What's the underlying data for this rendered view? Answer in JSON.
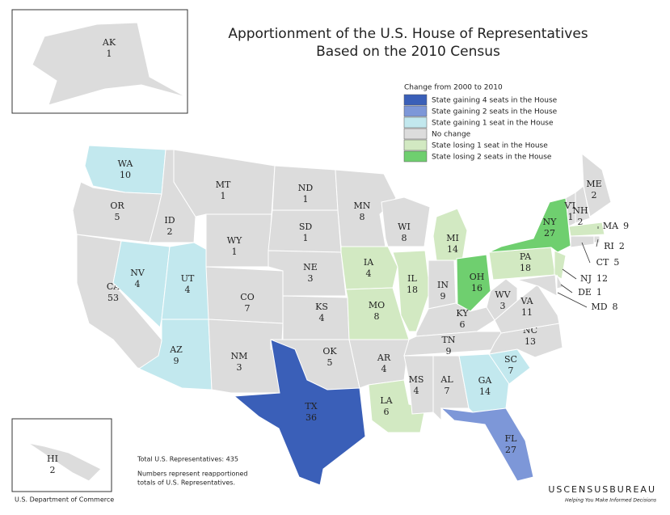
{
  "title": "Apportionment of the U.S. House of Representatives",
  "subtitle": "Based on the 2010 Census",
  "legend": {
    "title": "Change from 2000 to 2010",
    "items": [
      {
        "label": "State gaining 4 seats in the House",
        "color": "#3a5fb8"
      },
      {
        "label": "State gaining 2 seats in the House",
        "color": "#7d97d8"
      },
      {
        "label": "State gaining 1 seat in the House",
        "color": "#c2e8ee"
      },
      {
        "label": "No change",
        "color": "#dcdcdc"
      },
      {
        "label": "State losing 1 seat in the House",
        "color": "#d2e9c2"
      },
      {
        "label": "State losing 2 seats in the House",
        "color": "#6fcf6f"
      }
    ]
  },
  "states": [
    {
      "abbr": "WA",
      "seats": 10,
      "color": "#c2e8ee"
    },
    {
      "abbr": "OR",
      "seats": 5,
      "color": "#dcdcdc"
    },
    {
      "abbr": "CA",
      "seats": 53,
      "color": "#dcdcdc"
    },
    {
      "abbr": "ID",
      "seats": 2,
      "color": "#dcdcdc"
    },
    {
      "abbr": "NV",
      "seats": 4,
      "color": "#c2e8ee"
    },
    {
      "abbr": "UT",
      "seats": 4,
      "color": "#c2e8ee"
    },
    {
      "abbr": "AZ",
      "seats": 9,
      "color": "#c2e8ee"
    },
    {
      "abbr": "MT",
      "seats": 1,
      "color": "#dcdcdc"
    },
    {
      "abbr": "WY",
      "seats": 1,
      "color": "#dcdcdc"
    },
    {
      "abbr": "CO",
      "seats": 7,
      "color": "#dcdcdc"
    },
    {
      "abbr": "NM",
      "seats": 3,
      "color": "#dcdcdc"
    },
    {
      "abbr": "ND",
      "seats": 1,
      "color": "#dcdcdc"
    },
    {
      "abbr": "SD",
      "seats": 1,
      "color": "#dcdcdc"
    },
    {
      "abbr": "NE",
      "seats": 3,
      "color": "#dcdcdc"
    },
    {
      "abbr": "KS",
      "seats": 4,
      "color": "#dcdcdc"
    },
    {
      "abbr": "OK",
      "seats": 5,
      "color": "#dcdcdc"
    },
    {
      "abbr": "TX",
      "seats": 36,
      "color": "#3a5fb8"
    },
    {
      "abbr": "MN",
      "seats": 8,
      "color": "#dcdcdc"
    },
    {
      "abbr": "IA",
      "seats": 4,
      "color": "#d2e9c2"
    },
    {
      "abbr": "MO",
      "seats": 8,
      "color": "#d2e9c2"
    },
    {
      "abbr": "AR",
      "seats": 4,
      "color": "#dcdcdc"
    },
    {
      "abbr": "LA",
      "seats": 6,
      "color": "#d2e9c2"
    },
    {
      "abbr": "WI",
      "seats": 8,
      "color": "#dcdcdc"
    },
    {
      "abbr": "IL",
      "seats": 18,
      "color": "#d2e9c2"
    },
    {
      "abbr": "MI",
      "seats": 14,
      "color": "#d2e9c2"
    },
    {
      "abbr": "IN",
      "seats": 9,
      "color": "#dcdcdc"
    },
    {
      "abbr": "OH",
      "seats": 16,
      "color": "#6fcf6f"
    },
    {
      "abbr": "KY",
      "seats": 6,
      "color": "#dcdcdc"
    },
    {
      "abbr": "TN",
      "seats": 9,
      "color": "#dcdcdc"
    },
    {
      "abbr": "MS",
      "seats": 4,
      "color": "#dcdcdc"
    },
    {
      "abbr": "AL",
      "seats": 7,
      "color": "#dcdcdc"
    },
    {
      "abbr": "GA",
      "seats": 14,
      "color": "#c2e8ee"
    },
    {
      "abbr": "FL",
      "seats": 27,
      "color": "#7d97d8"
    },
    {
      "abbr": "SC",
      "seats": 7,
      "color": "#c2e8ee"
    },
    {
      "abbr": "NC",
      "seats": 13,
      "color": "#dcdcdc"
    },
    {
      "abbr": "VA",
      "seats": 11,
      "color": "#dcdcdc"
    },
    {
      "abbr": "WV",
      "seats": 3,
      "color": "#dcdcdc"
    },
    {
      "abbr": "PA",
      "seats": 18,
      "color": "#d2e9c2"
    },
    {
      "abbr": "NY",
      "seats": 27,
      "color": "#6fcf6f"
    },
    {
      "abbr": "NJ",
      "seats": 12,
      "color": "#d2e9c2"
    },
    {
      "abbr": "MD",
      "seats": 8,
      "color": "#dcdcdc"
    },
    {
      "abbr": "DE",
      "seats": 1,
      "color": "#dcdcdc"
    },
    {
      "abbr": "VT",
      "seats": 1,
      "color": "#dcdcdc"
    },
    {
      "abbr": "NH",
      "seats": 2,
      "color": "#dcdcdc"
    },
    {
      "abbr": "ME",
      "seats": 2,
      "color": "#dcdcdc"
    },
    {
      "abbr": "MA",
      "seats": 9,
      "color": "#d2e9c2"
    },
    {
      "abbr": "RI",
      "seats": 2,
      "color": "#dcdcdc"
    },
    {
      "abbr": "CT",
      "seats": 5,
      "color": "#dcdcdc"
    },
    {
      "abbr": "AK",
      "seats": 1,
      "color": "#dcdcdc"
    },
    {
      "abbr": "HI",
      "seats": 2,
      "color": "#dcdcdc"
    }
  ],
  "notes": [
    "Total U.S. Representatives: 435",
    "Numbers represent reapportioned",
    "totals of U.S. Representatives."
  ],
  "footer": "U.S. Department of Commerce",
  "logo": "USCENSUSBUREAU",
  "tagline": "Helping You Make Informed Decisions"
}
